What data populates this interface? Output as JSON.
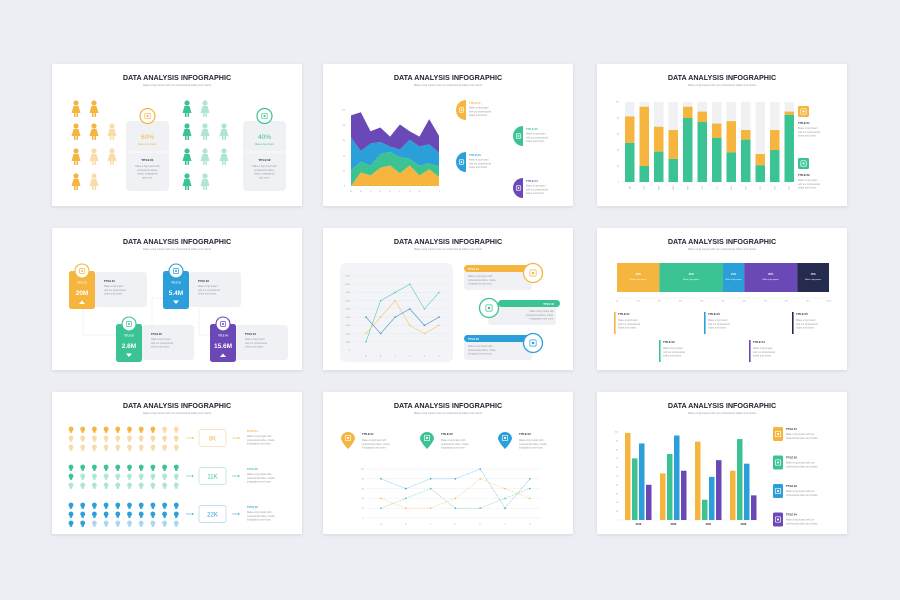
{
  "common": {
    "title": "DATA ANALYSIS INFOGRAPHIC",
    "subtitle": "Make a big impact with our professional slides and charts"
  },
  "colors": {
    "orange": "#f5b53f",
    "orange_light": "#f9dcaa",
    "green": "#3cc394",
    "green_light": "#aee6d1",
    "blue": "#2a9fd9",
    "blue_light": "#a9d7f0",
    "purple": "#6a48b6",
    "navy": "#252b4e",
    "card": "#f0f1f4",
    "text": "#1f2233",
    "muted": "#9a9ca6"
  },
  "slides": [
    {
      "id": "people",
      "groups": [
        {
          "percent": "60%",
          "caption": "Make a big impact",
          "title": "TITLE 01",
          "desc": [
            "Make a big impact with",
            "professional slides,",
            "charts, infographics",
            "and more."
          ],
          "filled": 6,
          "columns": [
            4,
            4,
            2
          ],
          "icon": "stopwatch-icon"
        },
        {
          "percent": "40%",
          "caption": "Make a big impact",
          "title": "TITLE 02",
          "desc": [
            "Make a big impact with",
            "professional slides,",
            "charts, infographics",
            "and more."
          ],
          "filled": 4,
          "columns": [
            4,
            4,
            2
          ],
          "icon": "presentation-icon"
        }
      ]
    },
    {
      "id": "stacked-area",
      "items": [
        {
          "title": "TITLE 01",
          "desc": [
            "Make a big impact",
            "with our professional",
            "slides and charts."
          ],
          "icon": "stopwatch-icon"
        },
        {
          "title": "TITLE 02",
          "desc": [
            "Make a big impact",
            "with our professional",
            "slides and charts."
          ],
          "icon": "presentation-icon"
        },
        {
          "title": "TITLE 03",
          "desc": [
            "Make a big impact",
            "with our professional",
            "slides and charts."
          ],
          "icon": "chart-board-icon"
        },
        {
          "title": "TITLE 04",
          "desc": [
            "Make a big impact",
            "with our professional",
            "slides and charts."
          ],
          "icon": "laptop-icon"
        }
      ]
    },
    {
      "id": "stacked-bar",
      "items": [
        {
          "title": "TITLE 01",
          "desc": [
            "Make a big impact",
            "with our professional",
            "slides and charts."
          ],
          "icon": "stopwatch-icon"
        },
        {
          "title": "TITLE 02",
          "desc": [
            "Make a big impact",
            "with our professional",
            "slides and charts."
          ],
          "icon": "presentation-icon"
        }
      ]
    },
    {
      "id": "value-cards",
      "cards": [
        {
          "tag": "TITLE 01",
          "value": "20M",
          "trend": "up",
          "title": "TITLE 01",
          "desc": [
            "Make a big impact",
            "with our professional",
            "slides and charts."
          ],
          "icon": "stopwatch-icon"
        },
        {
          "tag": "TITLE 02",
          "value": "2.6M",
          "trend": "down",
          "title": "TITLE 02",
          "desc": [
            "Make a big impact",
            "with our professional",
            "slides and charts."
          ],
          "icon": "presentation-icon"
        },
        {
          "tag": "TITLE 03",
          "value": "5.4M",
          "trend": "down",
          "title": "TITLE 03",
          "desc": [
            "Make a big impact",
            "with our professional",
            "slides and charts."
          ],
          "icon": "chart-board-icon"
        },
        {
          "tag": "TITLE 04",
          "value": "15.6M",
          "trend": "up",
          "title": "TITLE 04",
          "desc": [
            "Make a big impact",
            "with our professional",
            "slides and charts."
          ],
          "icon": "laptop-icon"
        }
      ]
    },
    {
      "id": "line-panel",
      "items": [
        {
          "title": "TITLE 01",
          "desc": [
            "Make a big impact with",
            "professional slides, charts,",
            "infographics and more."
          ],
          "icon": "stopwatch-icon"
        },
        {
          "title": "TITLE 02",
          "desc": [
            "Make a big impact with",
            "professional slides, charts,",
            "infographics and more."
          ],
          "icon": "presentation-icon"
        },
        {
          "title": "TITLE 03",
          "desc": [
            "Make a big impact with",
            "professional slides, charts,",
            "infographics and more."
          ],
          "icon": "chart-board-icon"
        }
      ]
    },
    {
      "id": "percent-bar",
      "segment_caption": "Make a big impact",
      "items": [
        {
          "title": "TITLE 01",
          "desc": [
            "Make a big impact",
            "with our professional",
            "slides and charts."
          ]
        },
        {
          "title": "TITLE 02",
          "desc": [
            "Make a big impact",
            "with our professional",
            "slides and charts."
          ]
        },
        {
          "title": "TITLE 03",
          "desc": [
            "Make a big impact",
            "with our professional",
            "slides and charts."
          ]
        },
        {
          "title": "TITLE 04",
          "desc": [
            "Make a big impact",
            "with our professional",
            "slides and charts."
          ]
        },
        {
          "title": "TITLE 05",
          "desc": [
            "Make a big impact",
            "with our professional",
            "slides and charts."
          ]
        }
      ]
    },
    {
      "id": "bulbs",
      "groups": [
        {
          "value": "8K",
          "filled": 8,
          "title": "TITLE 01",
          "desc": [
            "Make a big impact with",
            "professional slides, charts,",
            "infographics and more."
          ]
        },
        {
          "value": "11K",
          "filled": 11,
          "title": "TITLE 02",
          "desc": [
            "Make a big impact with",
            "professional slides, charts,",
            "infographics and more."
          ]
        },
        {
          "value": "22K",
          "filled": 22,
          "title": "TITLE 03",
          "desc": [
            "Make a big impact with",
            "professional slides, charts,",
            "infographics and more."
          ]
        }
      ],
      "per_row": 10,
      "rows": 3
    },
    {
      "id": "dotted-lines",
      "items": [
        {
          "title": "TITLE 01",
          "desc": [
            "Make a big impact with",
            "professional slides, charts,",
            "infographics and more."
          ],
          "icon": "stopwatch-icon"
        },
        {
          "title": "TITLE 02",
          "desc": [
            "Make a big impact with",
            "professional slides, charts,",
            "infographics and more."
          ],
          "icon": "presentation-icon"
        },
        {
          "title": "TITLE 03",
          "desc": [
            "Make a big impact with",
            "professional slides, charts,",
            "infographics and more."
          ],
          "icon": "chart-board-icon"
        }
      ]
    },
    {
      "id": "grouped-bar",
      "items": [
        {
          "title": "TITLE 01",
          "desc": [
            "Make a big impact with our",
            "professional slides and charts."
          ],
          "icon": "stopwatch-icon"
        },
        {
          "title": "TITLE 02",
          "desc": [
            "Make a big impact with our",
            "professional slides and charts."
          ],
          "icon": "presentation-icon"
        },
        {
          "title": "TITLE 03",
          "desc": [
            "Make a big impact with our",
            "professional slides and charts."
          ],
          "icon": "chart-board-icon"
        },
        {
          "title": "TITLE 04",
          "desc": [
            "Make a big impact with our",
            "professional slides and charts."
          ],
          "icon": "laptop-icon"
        }
      ]
    }
  ],
  "chart_data": [
    {
      "slide": "stacked-area",
      "type": "area",
      "stacked": true,
      "categories": [
        "A",
        "B",
        "C",
        "D",
        "E",
        "F",
        "G",
        "H",
        "I",
        "J"
      ],
      "ylim": [
        0,
        100
      ],
      "yticks": [
        0,
        20,
        40,
        60,
        80,
        100
      ],
      "series": [
        {
          "color": "#f5b53f",
          "values": [
            0,
            18,
            14,
            24,
            27,
            17,
            27,
            14,
            22,
            12
          ]
        },
        {
          "color": "#3cc394",
          "values": [
            21,
            14,
            13,
            18,
            18,
            21,
            9,
            13,
            8,
            14
          ]
        },
        {
          "color": "#2a9fd9",
          "values": [
            43,
            14,
            29,
            16,
            7,
            10,
            25,
            25,
            25,
            18
          ]
        },
        {
          "color": "#6a48b6",
          "values": [
            29,
            51,
            16,
            19,
            13,
            33,
            11,
            13,
            33,
            22
          ]
        }
      ]
    },
    {
      "slide": "stacked-bar",
      "type": "bar",
      "stacked": true,
      "categories": [
        "JAN",
        "FEB",
        "MAR",
        "APR",
        "MAY",
        "JUN",
        "JUL",
        "AUG",
        "SEP",
        "OCT",
        "NOV",
        "DEC"
      ],
      "ylim": [
        0,
        100
      ],
      "yticks": [
        0,
        20,
        40,
        60,
        80,
        100
      ],
      "series": [
        {
          "color": "#3cc394",
          "values": [
            49,
            20,
            38,
            29,
            80,
            75,
            55,
            37,
            53,
            21,
            40,
            84
          ]
        },
        {
          "color": "#f5b53f",
          "values": [
            33,
            74,
            31,
            36,
            14,
            13,
            18,
            39,
            12,
            14,
            25,
            4
          ]
        }
      ]
    },
    {
      "slide": "line-panel",
      "type": "line",
      "categories": [
        "A",
        "B",
        "C",
        "D",
        "E",
        "F"
      ],
      "ylim": [
        0,
        9000
      ],
      "yticks": [
        0,
        1000,
        2000,
        3000,
        4000,
        5000,
        6000,
        7000,
        8000,
        9000
      ],
      "series": [
        {
          "color": "#5cc6b8",
          "values": [
            1000,
            6000,
            7000,
            8000,
            5000,
            7000
          ]
        },
        {
          "color": "#f5c46a",
          "values": [
            2000,
            4000,
            6000,
            3000,
            2000,
            3000
          ]
        },
        {
          "color": "#3d8fc7",
          "values": [
            4000,
            2000,
            4000,
            5000,
            3000,
            4000
          ]
        }
      ]
    },
    {
      "slide": "percent-bar",
      "type": "bar",
      "stacked": true,
      "orientation": "horizontal",
      "xticks": [
        "0%",
        "10%",
        "20%",
        "30%",
        "40%",
        "50%",
        "60%",
        "70%",
        "80%",
        "90%",
        "100%"
      ],
      "series": [
        {
          "label": "20%",
          "value": 20,
          "color": "#f5b53f"
        },
        {
          "label": "30%",
          "value": 30,
          "color": "#3cc394"
        },
        {
          "label": "10%",
          "value": 10,
          "color": "#2a9fd9"
        },
        {
          "label": "25%",
          "value": 25,
          "color": "#6a48b6"
        },
        {
          "label": "15%",
          "value": 15,
          "color": "#252b4e"
        }
      ]
    },
    {
      "slide": "dotted-lines",
      "type": "line",
      "categories": [
        "A",
        "B",
        "C",
        "D",
        "E",
        "F",
        "G"
      ],
      "ylim": [
        0,
        100
      ],
      "yticks": [
        0,
        20,
        40,
        60,
        80,
        100
      ],
      "series": [
        {
          "color": "#2a9fd9",
          "values": [
            80,
            60,
            80,
            80,
            100,
            20,
            80
          ]
        },
        {
          "color": "#f5b53f",
          "values": [
            40,
            20,
            20,
            40,
            80,
            60,
            40
          ]
        },
        {
          "color": "#3cc394",
          "values": [
            20,
            40,
            60,
            20,
            20,
            40,
            60
          ]
        }
      ]
    },
    {
      "slide": "grouped-bar",
      "type": "bar",
      "categories": [
        "2019",
        "2020",
        "2021",
        "2022"
      ],
      "ylim": [
        0,
        100
      ],
      "yticks": [
        0,
        10,
        20,
        30,
        40,
        50,
        60,
        70,
        80,
        90,
        100
      ],
      "series": [
        {
          "color": "#f5b53f",
          "values": [
            99,
            53,
            89,
            56
          ]
        },
        {
          "color": "#3cc394",
          "values": [
            70,
            75,
            23,
            92
          ]
        },
        {
          "color": "#2a9fd9",
          "values": [
            87,
            96,
            49,
            64
          ]
        },
        {
          "color": "#6a48b6",
          "values": [
            40,
            56,
            68,
            28
          ]
        }
      ]
    }
  ]
}
